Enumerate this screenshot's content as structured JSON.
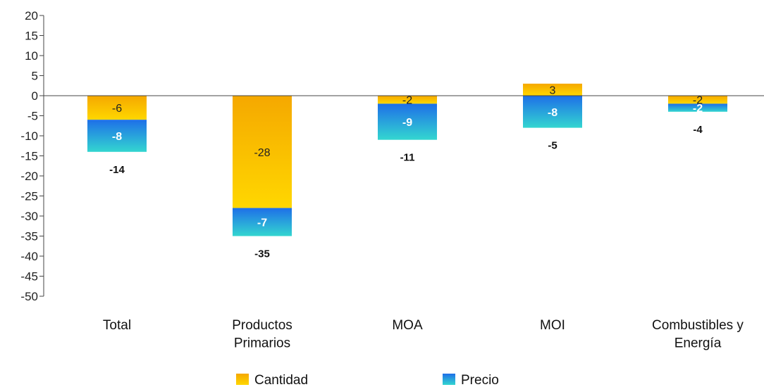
{
  "chart_data": {
    "type": "bar",
    "stacked": true,
    "categories": [
      [
        "Total"
      ],
      [
        "Productos",
        "Primarios"
      ],
      [
        "MOA"
      ],
      [
        "MOI"
      ],
      [
        "Combustibles y",
        "Energía"
      ]
    ],
    "series": [
      {
        "name": "Cantidad",
        "values": [
          -6,
          -28,
          -2,
          3,
          -2
        ],
        "color": "#f5a800",
        "color_light": "#ffd700"
      },
      {
        "name": "Precio",
        "values": [
          -8,
          -7,
          -9,
          -8,
          -2
        ],
        "color": "#1e6fe8",
        "color_light": "#33d6d0"
      }
    ],
    "totals": [
      -14,
      -35,
      -11,
      -5,
      -4
    ],
    "ylim": [
      -50,
      20
    ],
    "yticks": [
      20,
      15,
      10,
      5,
      0,
      -5,
      -10,
      -15,
      -20,
      -25,
      -30,
      -35,
      -40,
      -45,
      -50
    ],
    "legend_position": "bottom",
    "grid": false
  }
}
